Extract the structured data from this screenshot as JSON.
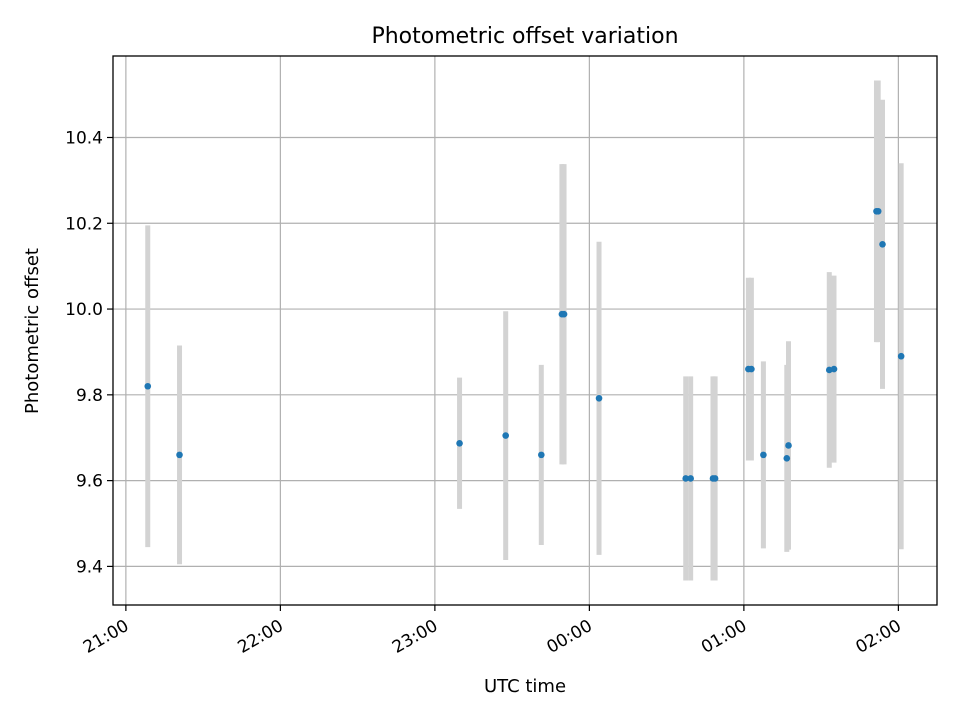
{
  "chart_data": {
    "type": "scatter",
    "title": "Photometric offset variation",
    "xlabel": "UTC time",
    "ylabel": "Photometric offset",
    "x_axis_type": "time",
    "xlim": [
      "2024-01-01T20:55:00",
      "2024-01-02T02:15:00"
    ],
    "ylim": [
      9.31,
      10.59
    ],
    "x_ticks": [
      {
        "label": "21:00",
        "time": "2024-01-01T21:00:00"
      },
      {
        "label": "22:00",
        "time": "2024-01-01T22:00:00"
      },
      {
        "label": "23:00",
        "time": "2024-01-01T23:00:00"
      },
      {
        "label": "00:00",
        "time": "2024-01-02T00:00:00"
      },
      {
        "label": "01:00",
        "time": "2024-01-02T01:00:00"
      },
      {
        "label": "02:00",
        "time": "2024-01-02T02:00:00"
      }
    ],
    "y_ticks": [
      {
        "label": "9.4",
        "value": 9.4
      },
      {
        "label": "9.6",
        "value": 9.6
      },
      {
        "label": "9.8",
        "value": 9.8
      },
      {
        "label": "10.0",
        "value": 10.0
      },
      {
        "label": "10.2",
        "value": 10.2
      },
      {
        "label": "10.4",
        "value": 10.4
      }
    ],
    "grid": true,
    "marker_color": "#1f77b4",
    "errorbar_color": "#d3d3d3",
    "points": [
      {
        "time": "2024-01-01T21:08:30",
        "y": 9.82,
        "err": 0.375
      },
      {
        "time": "2024-01-01T21:20:50",
        "y": 9.66,
        "err": 0.255
      },
      {
        "time": "2024-01-01T23:09:35",
        "y": 9.687,
        "err": 0.153
      },
      {
        "time": "2024-01-01T23:27:30",
        "y": 9.705,
        "err": 0.29
      },
      {
        "time": "2024-01-01T23:41:20",
        "y": 9.66,
        "err": 0.21
      },
      {
        "time": "2024-01-01T23:49:20",
        "y": 9.988,
        "err": 0.35
      },
      {
        "time": "2024-01-01T23:50:10",
        "y": 9.988,
        "err": 0.35
      },
      {
        "time": "2024-01-02T00:03:45",
        "y": 9.792,
        "err": 0.365
      },
      {
        "time": "2024-01-02T00:37:25",
        "y": 9.605,
        "err": 0.238
      },
      {
        "time": "2024-01-02T00:39:20",
        "y": 9.605,
        "err": 0.238
      },
      {
        "time": "2024-01-02T00:48:00",
        "y": 9.605,
        "err": 0.238
      },
      {
        "time": "2024-01-02T00:48:50",
        "y": 9.605,
        "err": 0.238
      },
      {
        "time": "2024-01-02T01:01:45",
        "y": 9.86,
        "err": 0.213
      },
      {
        "time": "2024-01-02T01:02:55",
        "y": 9.86,
        "err": 0.213
      },
      {
        "time": "2024-01-02T01:07:35",
        "y": 9.66,
        "err": 0.218
      },
      {
        "time": "2024-01-02T01:16:40",
        "y": 9.652,
        "err": 0.218
      },
      {
        "time": "2024-01-02T01:17:20",
        "y": 9.682,
        "err": 0.243
      },
      {
        "time": "2024-01-02T01:33:10",
        "y": 9.858,
        "err": 0.228
      },
      {
        "time": "2024-01-02T01:35:00",
        "y": 9.86,
        "err": 0.218
      },
      {
        "time": "2024-01-02T01:51:30",
        "y": 10.228,
        "err": 0.305
      },
      {
        "time": "2024-01-02T01:52:10",
        "y": 10.228,
        "err": 0.305
      },
      {
        "time": "2024-01-02T01:53:50",
        "y": 10.151,
        "err": 0.337
      },
      {
        "time": "2024-01-02T02:01:05",
        "y": 9.89,
        "err": 0.45
      }
    ]
  }
}
